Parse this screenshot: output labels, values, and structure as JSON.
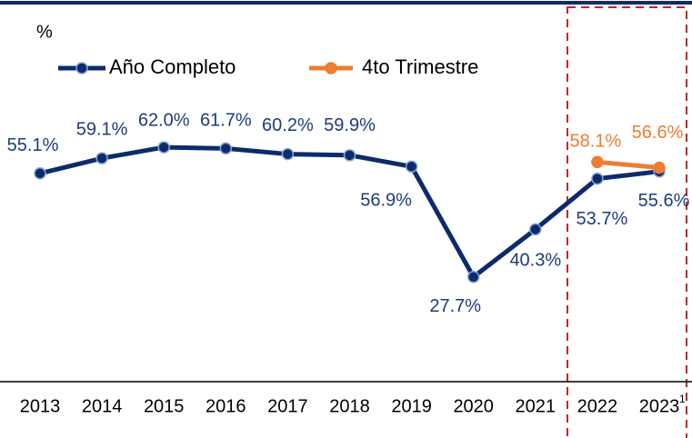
{
  "chart_data": {
    "type": "line",
    "y_unit_label": "%",
    "categories": [
      "2013",
      "2014",
      "2015",
      "2016",
      "2017",
      "2018",
      "2019",
      "2020",
      "2021",
      "2022",
      "2023"
    ],
    "category_note": "1",
    "series": [
      {
        "name": "Año Completo",
        "color": "#0d2a6b",
        "values": [
          55.1,
          59.1,
          62.0,
          61.7,
          60.2,
          59.9,
          56.9,
          27.7,
          40.3,
          53.7,
          55.6
        ],
        "value_labels": [
          "55.1%",
          "59.1%",
          "62.0%",
          "61.7%",
          "60.2%",
          "59.9%",
          "56.9%",
          "27.7%",
          "40.3%",
          "53.7%",
          "55.6%"
        ]
      },
      {
        "name": "4to Trimestre",
        "color": "#ed7d31",
        "values": [
          null,
          null,
          null,
          null,
          null,
          null,
          null,
          null,
          null,
          58.1,
          56.6
        ],
        "value_labels": [
          null,
          null,
          null,
          null,
          null,
          null,
          null,
          null,
          null,
          "58.1%",
          "56.6%"
        ]
      }
    ],
    "ylim": [
      0,
      100
    ],
    "legend": "top"
  }
}
